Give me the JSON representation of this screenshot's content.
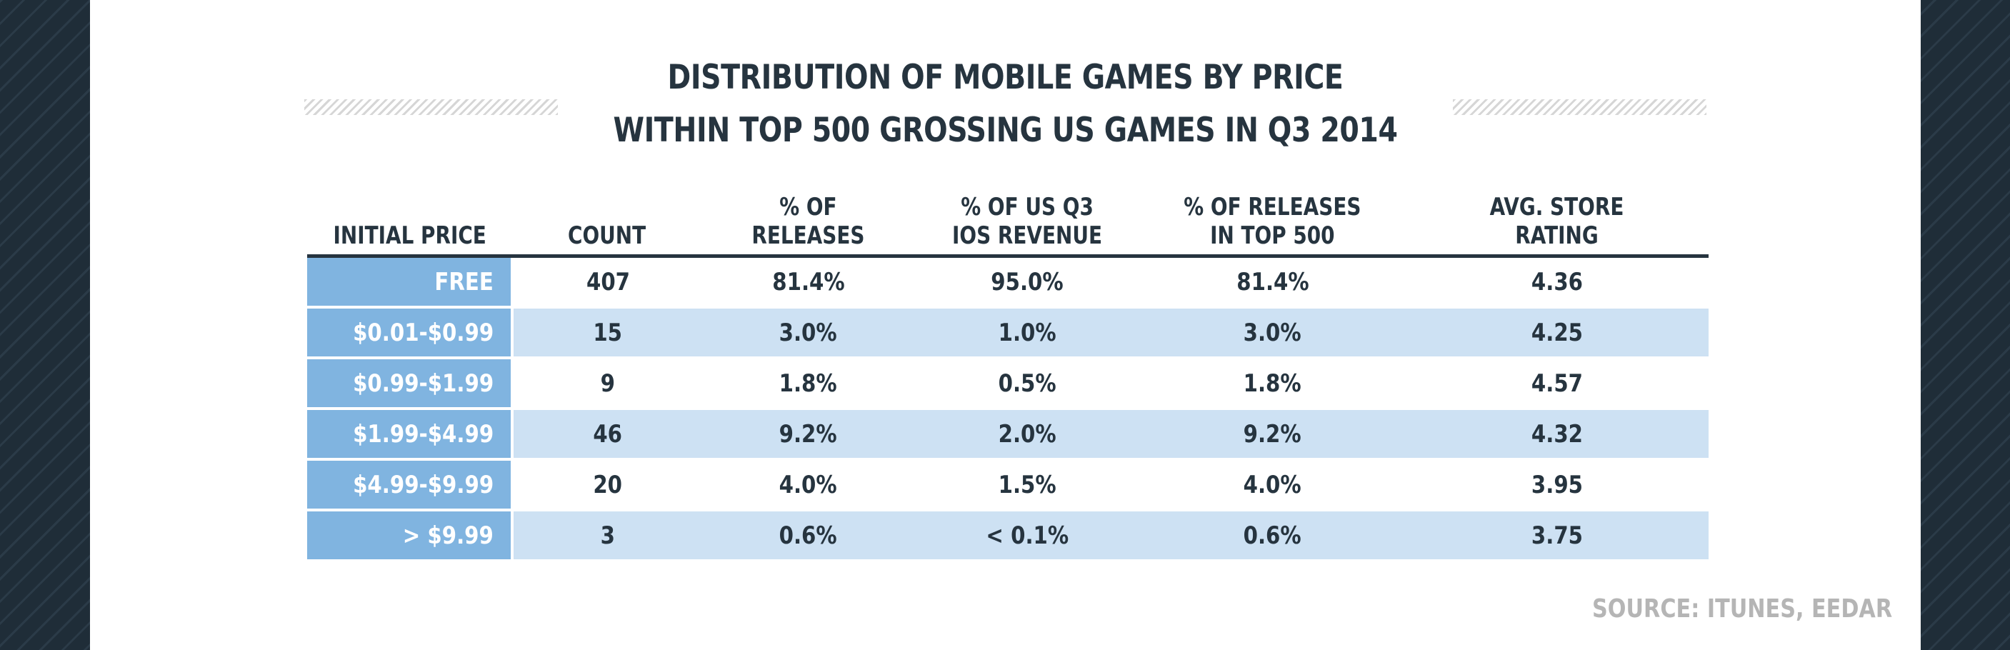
{
  "colors": {
    "background": "#243340",
    "card": "#ffffff",
    "title_text": "#26343f",
    "price_cell": "#80b4e0",
    "alt_row": "#cde1f3",
    "source_text": "#b5b5b5"
  },
  "title": {
    "line1": "DISTRIBUTION OF MOBILE GAMES BY PRICE",
    "line2": "WITHIN TOP 500 GROSSING US GAMES IN Q3 2014"
  },
  "source": "SOURCE: ITUNES, EEDAR",
  "chart_data": {
    "type": "table",
    "title": "DISTRIBUTION OF MOBILE GAMES BY PRICE WITHIN TOP 500 GROSSING US GAMES IN Q3 2014",
    "columns": [
      "INITIAL PRICE",
      "COUNT",
      "% OF\nRELEASES",
      "% OF US Q3\nIOS REVENUE",
      "% OF RELEASES\nIN TOP 500",
      "AVG. STORE\nRATING"
    ],
    "rows": [
      [
        "FREE",
        "407",
        "81.4%",
        "95.0%",
        "81.4%",
        "4.36"
      ],
      [
        "$0.01-$0.99",
        "15",
        "3.0%",
        "1.0%",
        "3.0%",
        "4.25"
      ],
      [
        "$0.99-$1.99",
        "9",
        "1.8%",
        "0.5%",
        "1.8%",
        "4.57"
      ],
      [
        "$1.99-$4.99",
        "46",
        "9.2%",
        "2.0%",
        "9.2%",
        "4.32"
      ],
      [
        "$4.99-$9.99",
        "20",
        "4.0%",
        "1.5%",
        "4.0%",
        "3.95"
      ],
      [
        "> $9.99",
        "3",
        "0.6%",
        "< 0.1%",
        "0.6%",
        "3.75"
      ]
    ]
  }
}
